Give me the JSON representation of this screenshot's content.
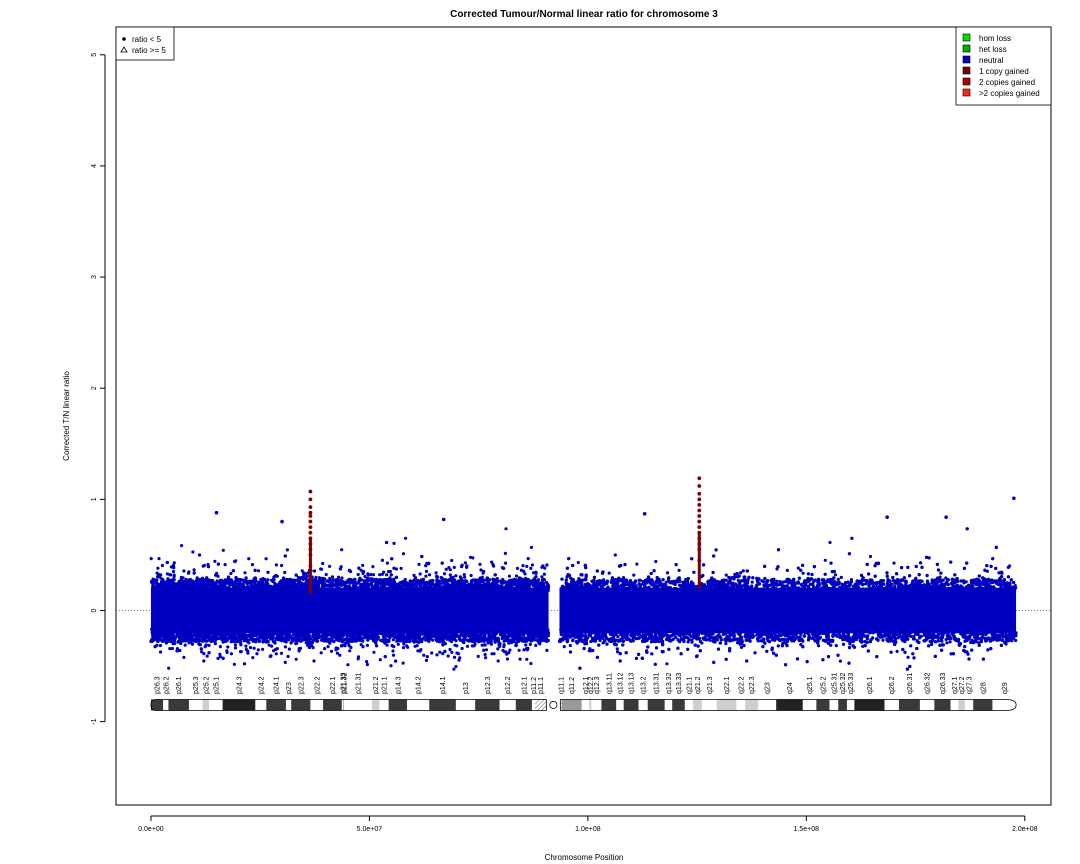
{
  "chart_data": {
    "type": "scatter",
    "title": "Corrected Tumour/Normal linear ratio for chromosome  3",
    "xlabel": "Chromosome Position",
    "ylabel": "Corrected T/N linear ratio",
    "xlim": [
      -8000000,
      206000000
    ],
    "ylim": [
      -1.75,
      5.25
    ],
    "x_ticks": [
      0,
      50000000,
      100000000,
      150000000,
      200000000
    ],
    "x_tick_labels": [
      "0.0e+00",
      "5.0e+07",
      "1.0e+08",
      "1.5e+08",
      "2.0e+08"
    ],
    "y_ticks": [
      -1,
      0,
      1,
      2,
      3,
      4,
      5
    ],
    "y_tick_labels": [
      "-1",
      "0",
      "1",
      "2",
      "3",
      "4",
      "5"
    ],
    "reference_line_y": 0,
    "series": [
      {
        "name": "neutral",
        "color": "#0000c0",
        "description_segments": [
          {
            "x_start": 0,
            "x_end": 91000000,
            "y_center": 0.0,
            "spread": 0.33
          },
          {
            "x_start": 93500000,
            "x_end": 198000000,
            "y_center": 0.0,
            "spread": 0.33
          }
        ]
      },
      {
        "name": "1 copy gained",
        "color": "#7f0000",
        "points": [
          {
            "x": 36500000,
            "y_values": [
              0.4,
              0.5,
              0.55,
              0.6,
              0.65,
              0.7,
              0.75,
              0.8,
              0.85,
              0.88,
              0.93,
              1.0,
              1.07
            ]
          },
          {
            "x": 125500000,
            "y_values": [
              0.45,
              0.55,
              0.6,
              0.65,
              0.7,
              0.75,
              0.8,
              0.85,
              0.9,
              0.95,
              1.0,
              1.05,
              1.12,
              1.19
            ]
          }
        ]
      }
    ],
    "outliers": [
      {
        "x": 197500000,
        "y": 1.01
      },
      {
        "x": 15000000,
        "y": 0.88
      },
      {
        "x": 30000000,
        "y": 0.8
      },
      {
        "x": 67000000,
        "y": 0.82
      },
      {
        "x": 113000000,
        "y": 0.87
      },
      {
        "x": 168500000,
        "y": 0.84
      },
      {
        "x": 182000000,
        "y": 0.84
      }
    ],
    "shape_legend": {
      "position": "top-left",
      "entries": [
        {
          "symbol": "dot",
          "label": "ratio < 5"
        },
        {
          "symbol": "triangle",
          "label": "ratio >= 5"
        }
      ]
    },
    "color_legend": {
      "position": "top-right",
      "entries": [
        {
          "label": "hom loss",
          "color": "#00e000"
        },
        {
          "label": "het loss",
          "color": "#00b000"
        },
        {
          "label": "neutral",
          "color": "#0000c0"
        },
        {
          "label": "1 copy gained",
          "color": "#7f0000"
        },
        {
          "label": "2 copies gained",
          "color": "#b00000"
        },
        {
          "label": ">2 copies gained",
          "color": "#ff2020"
        }
      ]
    },
    "ideogram": {
      "y": -0.85,
      "centromere": [
        90500000,
        93700000
      ],
      "bands": [
        {
          "name": "p26.3",
          "start": 0,
          "end": 2800000,
          "stain": "gpos50"
        },
        {
          "name": "p26.2",
          "start": 2800000,
          "end": 4000000,
          "stain": "gneg"
        },
        {
          "name": "p26.1",
          "start": 4000000,
          "end": 8700000,
          "stain": "gpos50"
        },
        {
          "name": "p25.3",
          "start": 8700000,
          "end": 11800000,
          "stain": "gneg"
        },
        {
          "name": "p25.2",
          "start": 11800000,
          "end": 13300000,
          "stain": "gpos25"
        },
        {
          "name": "p25.1",
          "start": 13300000,
          "end": 16400000,
          "stain": "gneg"
        },
        {
          "name": "p24.3",
          "start": 16400000,
          "end": 23900000,
          "stain": "gpos100"
        },
        {
          "name": "p24.2",
          "start": 23900000,
          "end": 26400000,
          "stain": "gneg"
        },
        {
          "name": "p24.1",
          "start": 26400000,
          "end": 30900000,
          "stain": "gpos75"
        },
        {
          "name": "p23",
          "start": 30900000,
          "end": 32100000,
          "stain": "gneg"
        },
        {
          "name": "p22.3",
          "start": 32100000,
          "end": 36500000,
          "stain": "gpos50"
        },
        {
          "name": "p22.2",
          "start": 36500000,
          "end": 39400000,
          "stain": "gneg"
        },
        {
          "name": "p22.1",
          "start": 39400000,
          "end": 43700000,
          "stain": "gpos75"
        },
        {
          "name": "p21.33",
          "start": 43700000,
          "end": 44100000,
          "stain": "gneg"
        },
        {
          "name": "p21.32",
          "start": 44100000,
          "end": 44200000,
          "stain": "gpos50"
        },
        {
          "name": "p21.31",
          "start": 44200000,
          "end": 50600000,
          "stain": "gneg"
        },
        {
          "name": "p21.2",
          "start": 50600000,
          "end": 52300000,
          "stain": "gpos25"
        },
        {
          "name": "p21.1",
          "start": 52300000,
          "end": 54400000,
          "stain": "gneg"
        },
        {
          "name": "p14.3",
          "start": 54400000,
          "end": 58600000,
          "stain": "gpos50"
        },
        {
          "name": "p14.2",
          "start": 58600000,
          "end": 63700000,
          "stain": "gneg"
        },
        {
          "name": "p14.1",
          "start": 63700000,
          "end": 69800000,
          "stain": "gpos50"
        },
        {
          "name": "p13",
          "start": 69800000,
          "end": 74200000,
          "stain": "gneg"
        },
        {
          "name": "p12.3",
          "start": 74200000,
          "end": 79800000,
          "stain": "gpos75"
        },
        {
          "name": "p12.2",
          "start": 79800000,
          "end": 83500000,
          "stain": "gneg"
        },
        {
          "name": "p12.1",
          "start": 83500000,
          "end": 87200000,
          "stain": "gpos75"
        },
        {
          "name": "p11.2",
          "start": 87200000,
          "end": 87900000,
          "stain": "gneg"
        },
        {
          "name": "p11.1",
          "start": 87900000,
          "end": 90500000,
          "stain": "acen"
        },
        {
          "name": "q11.1",
          "start": 93700000,
          "end": 94000000,
          "stain": "acen"
        },
        {
          "name": "q11.2",
          "start": 94000000,
          "end": 98600000,
          "stain": "gvar"
        },
        {
          "name": "q12.1",
          "start": 98600000,
          "end": 100300000,
          "stain": "gneg"
        },
        {
          "name": "q12.2",
          "start": 100300000,
          "end": 100800000,
          "stain": "gpos25"
        },
        {
          "name": "q12.3",
          "start": 100800000,
          "end": 103100000,
          "stain": "gneg"
        },
        {
          "name": "q13.11",
          "start": 103100000,
          "end": 106500000,
          "stain": "gpos75"
        },
        {
          "name": "q13.12",
          "start": 106500000,
          "end": 108200000,
          "stain": "gneg"
        },
        {
          "name": "q13.13",
          "start": 108200000,
          "end": 111600000,
          "stain": "gpos50"
        },
        {
          "name": "q13.2",
          "start": 111600000,
          "end": 113700000,
          "stain": "gneg"
        },
        {
          "name": "q13.31",
          "start": 113700000,
          "end": 117600000,
          "stain": "gpos75"
        },
        {
          "name": "q13.32",
          "start": 117600000,
          "end": 119300000,
          "stain": "gneg"
        },
        {
          "name": "q13.33",
          "start": 119300000,
          "end": 122200000,
          "stain": "gpos75"
        },
        {
          "name": "q21.1",
          "start": 122200000,
          "end": 124100000,
          "stain": "gneg"
        },
        {
          "name": "q21.2",
          "start": 124100000,
          "end": 126100000,
          "stain": "gpos25"
        },
        {
          "name": "q21.3",
          "start": 126100000,
          "end": 129500000,
          "stain": "gneg"
        },
        {
          "name": "q22.1",
          "start": 129500000,
          "end": 134000000,
          "stain": "gpos25"
        },
        {
          "name": "q22.2",
          "start": 134000000,
          "end": 136000000,
          "stain": "gneg"
        },
        {
          "name": "q22.3",
          "start": 136000000,
          "end": 139000000,
          "stain": "gpos25"
        },
        {
          "name": "q23",
          "start": 139000000,
          "end": 143100000,
          "stain": "gneg"
        },
        {
          "name": "q24",
          "start": 143100000,
          "end": 149200000,
          "stain": "gpos100"
        },
        {
          "name": "q25.1",
          "start": 149200000,
          "end": 152300000,
          "stain": "gneg"
        },
        {
          "name": "q25.2",
          "start": 152300000,
          "end": 155300000,
          "stain": "gpos50"
        },
        {
          "name": "q25.31",
          "start": 155300000,
          "end": 157300000,
          "stain": "gneg"
        },
        {
          "name": "q25.32",
          "start": 157300000,
          "end": 159300000,
          "stain": "gpos50"
        },
        {
          "name": "q25.33",
          "start": 159300000,
          "end": 161000000,
          "stain": "gneg"
        },
        {
          "name": "q26.1",
          "start": 161000000,
          "end": 167900000,
          "stain": "gpos100"
        },
        {
          "name": "q26.2",
          "start": 167900000,
          "end": 171200000,
          "stain": "gneg"
        },
        {
          "name": "q26.31",
          "start": 171200000,
          "end": 176000000,
          "stain": "gpos75"
        },
        {
          "name": "q26.32",
          "start": 176000000,
          "end": 179300000,
          "stain": "gneg"
        },
        {
          "name": "q26.33",
          "start": 179300000,
          "end": 183000000,
          "stain": "gpos75"
        },
        {
          "name": "q27.1",
          "start": 183000000,
          "end": 184800000,
          "stain": "gneg"
        },
        {
          "name": "q27.2",
          "start": 184800000,
          "end": 186300000,
          "stain": "gpos25"
        },
        {
          "name": "q27.3",
          "start": 186300000,
          "end": 188200000,
          "stain": "gneg"
        },
        {
          "name": "q28",
          "start": 188200000,
          "end": 192600000,
          "stain": "gpos75"
        },
        {
          "name": "q29",
          "start": 192600000,
          "end": 198022430,
          "stain": "gneg"
        }
      ]
    }
  }
}
